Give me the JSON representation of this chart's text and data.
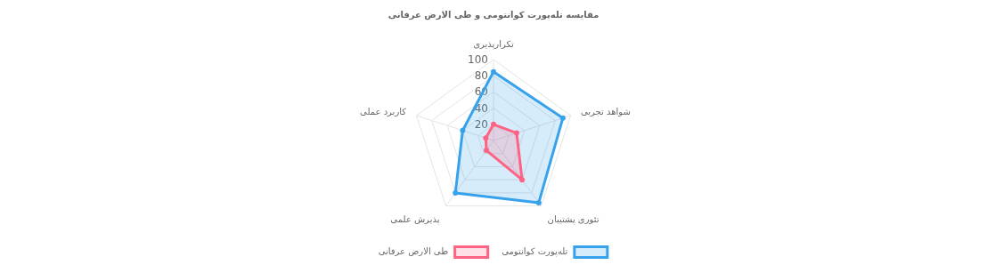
{
  "chart_data": {
    "type": "radar",
    "title": "مقایسه تله‌پورت کوانتومی و طی الارض عرفانی",
    "categories": [
      "تکرارپذیری",
      "شواهد تجربی",
      "تئوری پشتیبان",
      "پذیرش علمی",
      "کاربرد عملی"
    ],
    "series": [
      {
        "name": "تله‌پورت کوانتومی",
        "color": "#36a2eb",
        "values": [
          85,
          90,
          95,
          80,
          40
        ]
      },
      {
        "name": "طی الارض عرفانی",
        "color": "#ff6384",
        "values": [
          20,
          30,
          60,
          15,
          10
        ]
      }
    ],
    "ylim": [
      0,
      100
    ],
    "yticks": [
      20,
      40,
      60,
      80,
      100
    ],
    "grid": true,
    "legend": "bottom",
    "marker": "circle"
  }
}
